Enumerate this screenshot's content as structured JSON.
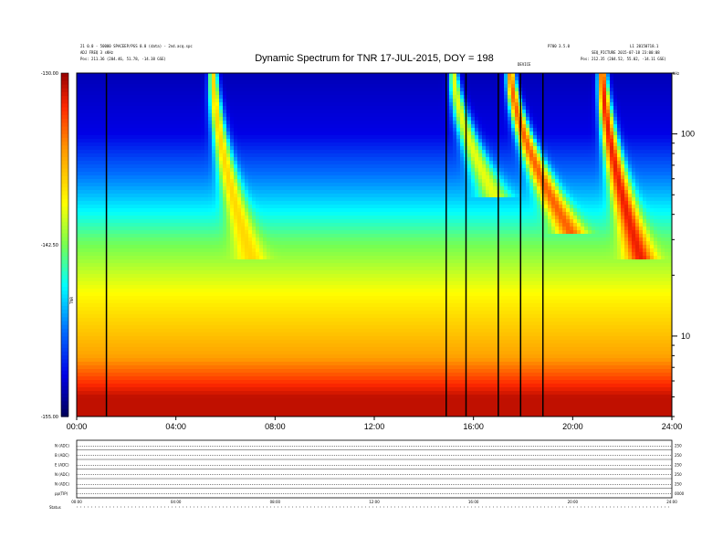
{
  "header": {
    "left_line1": "21 0.0 - 50000 SPACEEP/PGS 0.0 (data) - 2nd.acq.spc",
    "left_line2": "ADJ FREQ 3 sKHz",
    "left_line3": "Pos:    211.36 (204.46, 51.78, -14.38 GSE)",
    "right_top_left": "P700 3.5.0",
    "right_top_right": "L1 20150718.1",
    "right_line2": "SEQ_PICTURE 2015-07-18 23:00:08",
    "right_line3": "Pos:    212.35 (204.52, 55.02, -14.11 GSE)",
    "mid_marker": "DEVICE",
    "corner_label": "kHz"
  },
  "title": "Dynamic Spectrum for TNR 17-JUL-2015, DOY = 198",
  "colorbar": {
    "ticks": [
      "-130.00",
      "-142.50",
      "-155.00"
    ],
    "unit": "TNR",
    "colors": [
      "#a00000",
      "#ff2000",
      "#ff8000",
      "#ffff00",
      "#80ff00",
      "#00ffff",
      "#0080ff",
      "#0000ff",
      "#000080"
    ]
  },
  "chart_data": {
    "type": "heatmap",
    "title": "Dynamic Spectrum for TNR 17-JUL-2015, DOY = 198",
    "xlabel": "",
    "ylabel": "",
    "x_range": [
      "00:00",
      "24:00"
    ],
    "x_ticks": [
      "00:00",
      "04:00",
      "08:00",
      "12:00",
      "16:00",
      "20:00",
      "24:00"
    ],
    "y_scale": "log",
    "y_range_khz": [
      4,
      200
    ],
    "y_ticks": [
      10,
      100
    ],
    "z_range_db": [
      -155,
      -130
    ],
    "background_levels_db": [
      {
        "freq_khz": 200,
        "db": -153
      },
      {
        "freq_khz": 100,
        "db": -152
      },
      {
        "freq_khz": 50,
        "db": -147
      },
      {
        "freq_khz": 30,
        "db": -143
      },
      {
        "freq_khz": 15,
        "db": -139
      },
      {
        "freq_khz": 8,
        "db": -136
      },
      {
        "freq_khz": 5,
        "db": -131
      }
    ],
    "bursts": [
      {
        "start_hour": 5.5,
        "start_freq_khz": 200,
        "end_hour": 6.8,
        "end_freq_khz": 30,
        "peak_db": -138
      },
      {
        "start_hour": 15.2,
        "start_freq_khz": 200,
        "end_hour": 16.5,
        "end_freq_khz": 60,
        "peak_db": -140
      },
      {
        "start_hour": 17.5,
        "start_freq_khz": 200,
        "end_hour": 19.5,
        "end_freq_khz": 40,
        "peak_db": -134
      },
      {
        "start_hour": 21.2,
        "start_freq_khz": 200,
        "end_hour": 22.5,
        "end_freq_khz": 30,
        "peak_db": -132
      }
    ],
    "data_gaps_hours": [
      1.2,
      14.9,
      15.7,
      17.0,
      17.9,
      18.8
    ]
  },
  "bottom_panel": {
    "x_ticks": [
      "00:00",
      "04:00",
      "08:00",
      "12:00",
      "16:00",
      "20:00",
      "24:00"
    ],
    "rows": [
      {
        "label": "N (ADC)",
        "right": "250"
      },
      {
        "label": "B (ADC)",
        "right": "250"
      },
      {
        "label": "E (ADC)",
        "right": "250"
      },
      {
        "label": "N (ADC)",
        "right": "250"
      },
      {
        "label": "N (ADC)",
        "right": "250"
      },
      {
        "label": "pp(TIP)",
        "right": "0000"
      }
    ],
    "status_label": "Status"
  }
}
